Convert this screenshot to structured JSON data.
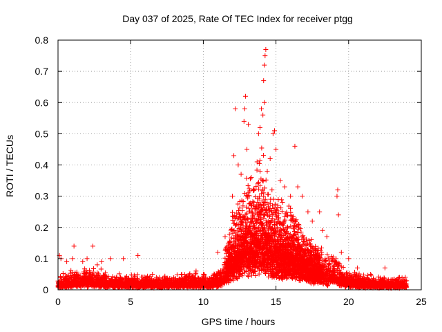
{
  "chart_data": {
    "type": "scatter",
    "title": "Day 037 of 2025, Rate Of TEC Index for receiver ptgg",
    "xlabel": "GPS time / hours",
    "ylabel": "ROTI / TECUs",
    "xlim": [
      0,
      25
    ],
    "ylim": [
      0,
      0.8
    ],
    "xticks": [
      "0",
      "5",
      "10",
      "15",
      "20",
      "25"
    ],
    "yticks": [
      "0",
      "0.1",
      "0.2",
      "0.3",
      "0.4",
      "0.5",
      "0.6",
      "0.7",
      "0.8"
    ],
    "grid": true,
    "marker": "+",
    "color": "#ff0000",
    "series": [
      {
        "points": [
          [
            0.1,
            0.11
          ],
          [
            0.2,
            0.1
          ],
          [
            0.6,
            0.09
          ],
          [
            1.0,
            0.1
          ],
          [
            1.1,
            0.14
          ],
          [
            1.7,
            0.09
          ],
          [
            2.0,
            0.1
          ],
          [
            2.4,
            0.14
          ],
          [
            2.7,
            0.08
          ],
          [
            3.0,
            0.09
          ],
          [
            3.6,
            0.1
          ],
          [
            4.5,
            0.1
          ],
          [
            5.5,
            0.11
          ],
          [
            6.5,
            0.05
          ],
          [
            9.5,
            0.06
          ],
          [
            11.0,
            0.12
          ],
          [
            11.5,
            0.17
          ],
          [
            12.0,
            0.3
          ],
          [
            12.1,
            0.43
          ],
          [
            12.2,
            0.58
          ],
          [
            12.4,
            0.4
          ],
          [
            12.6,
            0.37
          ],
          [
            12.8,
            0.54
          ],
          [
            12.85,
            0.58
          ],
          [
            12.9,
            0.62
          ],
          [
            13.0,
            0.45
          ],
          [
            13.1,
            0.53
          ],
          [
            13.3,
            0.36
          ],
          [
            13.5,
            0.32
          ],
          [
            13.7,
            0.41
          ],
          [
            13.8,
            0.5
          ],
          [
            13.9,
            0.52
          ],
          [
            14.0,
            0.58
          ],
          [
            14.1,
            0.56
          ],
          [
            14.15,
            0.67
          ],
          [
            14.2,
            0.72
          ],
          [
            14.25,
            0.75
          ],
          [
            14.3,
            0.77
          ],
          [
            14.2,
            0.6
          ],
          [
            14.4,
            0.38
          ],
          [
            14.6,
            0.42
          ],
          [
            14.8,
            0.5
          ],
          [
            14.9,
            0.51
          ],
          [
            15.0,
            0.45
          ],
          [
            15.3,
            0.35
          ],
          [
            15.6,
            0.33
          ],
          [
            16.0,
            0.3
          ],
          [
            16.3,
            0.46
          ],
          [
            16.5,
            0.33
          ],
          [
            16.8,
            0.3
          ],
          [
            17.2,
            0.25
          ],
          [
            17.5,
            0.22
          ],
          [
            18.0,
            0.25
          ],
          [
            18.2,
            0.19
          ],
          [
            18.5,
            0.17
          ],
          [
            19.2,
            0.3
          ],
          [
            19.25,
            0.32
          ],
          [
            19.3,
            0.24
          ],
          [
            19.5,
            0.12
          ],
          [
            20.0,
            0.1
          ],
          [
            20.6,
            0.07
          ],
          [
            21.5,
            0.05
          ],
          [
            22.5,
            0.07
          ],
          [
            23.5,
            0.04
          ],
          [
            23.9,
            0.04
          ]
        ],
        "envelope": [
          [
            0,
            0.03
          ],
          [
            1,
            0.045
          ],
          [
            2,
            0.05
          ],
          [
            3,
            0.045
          ],
          [
            4,
            0.035
          ],
          [
            5,
            0.035
          ],
          [
            6,
            0.035
          ],
          [
            7,
            0.03
          ],
          [
            8,
            0.035
          ],
          [
            9,
            0.04
          ],
          [
            10,
            0.04
          ],
          [
            10.5,
            0.03
          ],
          [
            11,
            0.05
          ],
          [
            11.5,
            0.09
          ],
          [
            12,
            0.18
          ],
          [
            12.5,
            0.22
          ],
          [
            13,
            0.25
          ],
          [
            13.5,
            0.27
          ],
          [
            14,
            0.32
          ],
          [
            14.5,
            0.25
          ],
          [
            15,
            0.22
          ],
          [
            15.5,
            0.2
          ],
          [
            16,
            0.2
          ],
          [
            16.5,
            0.18
          ],
          [
            17,
            0.13
          ],
          [
            17.5,
            0.12
          ],
          [
            18,
            0.11
          ],
          [
            18.5,
            0.08
          ],
          [
            19,
            0.08
          ],
          [
            19.5,
            0.06
          ],
          [
            20,
            0.05
          ],
          [
            21,
            0.035
          ],
          [
            22,
            0.03
          ],
          [
            23,
            0.03
          ],
          [
            24,
            0.025
          ]
        ]
      }
    ]
  }
}
